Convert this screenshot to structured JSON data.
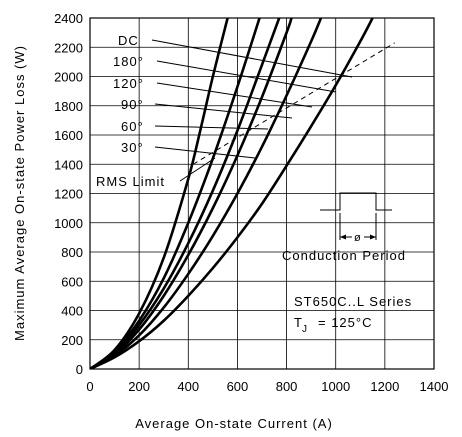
{
  "chart_data": {
    "type": "line",
    "xlabel": "Average On-state Current (A)",
    "ylabel": "Maximum Average On-state Power Loss (W)",
    "xlim": [
      0,
      1400
    ],
    "ylim": [
      0,
      2400
    ],
    "x_ticks": [
      "0",
      "200",
      "400",
      "600",
      "800",
      "1000",
      "1200",
      "1400"
    ],
    "y_ticks": [
      "0",
      "200",
      "400",
      "600",
      "800",
      "1000",
      "1200",
      "1400",
      "1600",
      "1800",
      "2000",
      "2200",
      "2400"
    ],
    "grid": true,
    "series": [
      {
        "name": "30°",
        "points": [
          [
            0,
            0
          ],
          [
            100,
            130
          ],
          [
            200,
            380
          ],
          [
            300,
            760
          ],
          [
            400,
            1300
          ],
          [
            450,
            1640
          ],
          [
            500,
            2000
          ],
          [
            560,
            2400
          ]
        ]
      },
      {
        "name": "60°",
        "points": [
          [
            0,
            0
          ],
          [
            100,
            120
          ],
          [
            200,
            330
          ],
          [
            300,
            620
          ],
          [
            400,
            1000
          ],
          [
            500,
            1440
          ],
          [
            600,
            1930
          ],
          [
            690,
            2400
          ]
        ]
      },
      {
        "name": "90°",
        "points": [
          [
            0,
            0
          ],
          [
            100,
            110
          ],
          [
            200,
            300
          ],
          [
            300,
            550
          ],
          [
            400,
            860
          ],
          [
            500,
            1220
          ],
          [
            600,
            1630
          ],
          [
            700,
            2080
          ],
          [
            770,
            2400
          ]
        ]
      },
      {
        "name": "120°",
        "points": [
          [
            0,
            0
          ],
          [
            100,
            100
          ],
          [
            200,
            270
          ],
          [
            300,
            500
          ],
          [
            400,
            780
          ],
          [
            500,
            1100
          ],
          [
            600,
            1460
          ],
          [
            700,
            1860
          ],
          [
            800,
            2300
          ],
          [
            820,
            2400
          ]
        ]
      },
      {
        "name": "180°",
        "points": [
          [
            0,
            0
          ],
          [
            100,
            90
          ],
          [
            200,
            230
          ],
          [
            300,
            420
          ],
          [
            400,
            650
          ],
          [
            500,
            910
          ],
          [
            600,
            1200
          ],
          [
            700,
            1520
          ],
          [
            800,
            1870
          ],
          [
            900,
            2240
          ],
          [
            940,
            2400
          ]
        ]
      },
      {
        "name": "DC",
        "points": [
          [
            0,
            0
          ],
          [
            100,
            80
          ],
          [
            200,
            190
          ],
          [
            300,
            330
          ],
          [
            400,
            500
          ],
          [
            500,
            690
          ],
          [
            600,
            900
          ],
          [
            700,
            1130
          ],
          [
            800,
            1390
          ],
          [
            900,
            1660
          ],
          [
            1000,
            1940
          ],
          [
            1100,
            2240
          ],
          [
            1150,
            2400
          ]
        ]
      }
    ],
    "rms_limit": {
      "name": "RMS Limit",
      "points": [
        [
          420,
          1400
        ],
        [
          1240,
          2230
        ]
      ]
    },
    "annotations": {
      "curve_labels": [
        "DC",
        "180°",
        "120°",
        "90°",
        "60°",
        "30°"
      ],
      "rms_limit_label": "RMS Limit",
      "conduction_period": "Conduction Period",
      "conduction_symbol": "ø",
      "series_info": "ST650C..L Series",
      "tj_label": "T",
      "tj_sub": "J",
      "tj_value": "= 125°C"
    }
  }
}
